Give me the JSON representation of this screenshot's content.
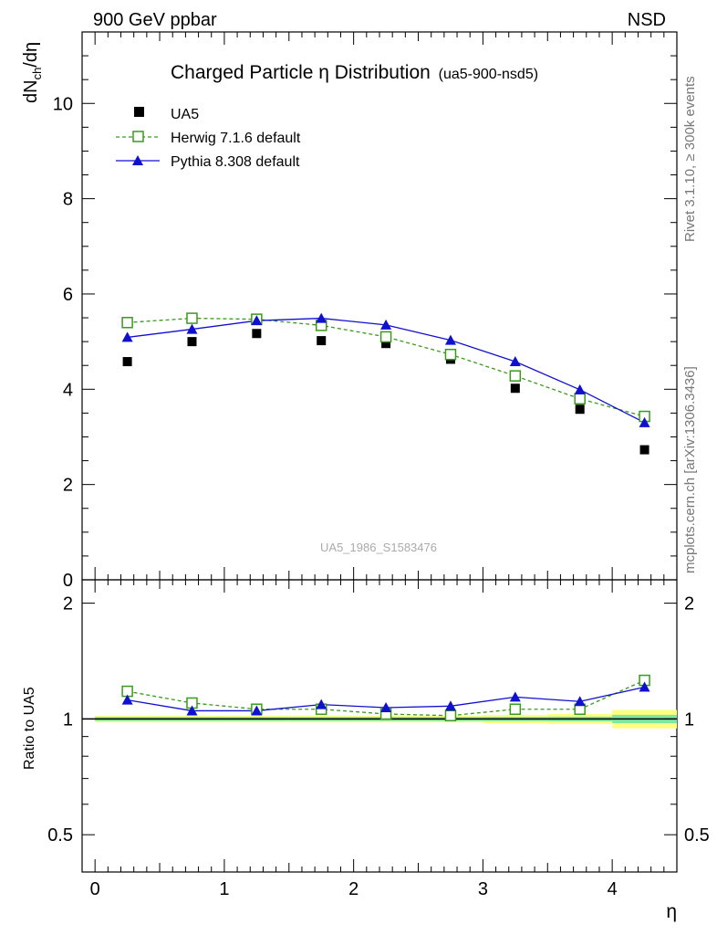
{
  "header": {
    "left_label": "900 GeV ppbar",
    "right_label": "NSD"
  },
  "side_labels": {
    "rivet": "Rivet 3.1.10, ≥ 300k events",
    "mcplots": "mcplots.cern.ch [arXiv:1306.3436]"
  },
  "watermark": "UA5_1986_S1583476",
  "chart_data": [
    {
      "type": "scatter",
      "title": "Charged Particle η Distribution",
      "subtitle": "(ua5-900-nsd5)",
      "xlabel": "η",
      "ylabel": "dN",
      "ylabel_sub": "ch",
      "ylabel_tail": "/dη",
      "xlim": [
        -0.1,
        4.5
      ],
      "ylim": [
        0,
        11.5
      ],
      "yticks": [
        0,
        2,
        4,
        6,
        8,
        10
      ],
      "grid": false,
      "legend_position": "top-left",
      "x": [
        0.25,
        0.75,
        1.25,
        1.75,
        2.25,
        2.75,
        3.25,
        3.75,
        4.25
      ],
      "series": [
        {
          "name": "UA5",
          "style": "data",
          "color": "#000000",
          "values": [
            4.58,
            5.0,
            5.17,
            5.02,
            4.96,
            4.63,
            4.02,
            3.58,
            2.73
          ]
        },
        {
          "name": "Herwig 7.1.6 default",
          "style": "dashed-open-square",
          "color": "#3a9a1a",
          "values": [
            5.4,
            5.49,
            5.47,
            5.34,
            5.1,
            4.73,
            4.28,
            3.8,
            3.43
          ]
        },
        {
          "name": "Pythia 8.308 default",
          "style": "solid-triangle",
          "color": "#1010d0",
          "values": [
            5.09,
            5.26,
            5.44,
            5.49,
            5.35,
            5.03,
            4.58,
            3.99,
            3.3
          ]
        }
      ]
    },
    {
      "type": "line",
      "ylabel": "Ratio to UA5",
      "xlim": [
        -0.1,
        4.5
      ],
      "ylim": [
        0.4,
        2.3
      ],
      "yticks": [
        0.5,
        1,
        2
      ],
      "ytick_labels": [
        "0.5",
        "1",
        "2"
      ],
      "xticks": [
        0,
        1,
        2,
        3,
        4
      ],
      "x": [
        0.25,
        0.75,
        1.25,
        1.75,
        2.25,
        2.75,
        3.25,
        3.75,
        4.25
      ],
      "bins": [
        [
          0,
          0.5
        ],
        [
          0.5,
          1
        ],
        [
          1,
          1.5
        ],
        [
          1.5,
          2
        ],
        [
          2,
          2.5
        ],
        [
          2.5,
          3
        ],
        [
          3,
          3.5
        ],
        [
          3.5,
          4
        ],
        [
          4,
          4.5
        ]
      ],
      "band_stat": [
        0.012,
        0.012,
        0.012,
        0.012,
        0.012,
        0.012,
        0.013,
        0.014,
        0.025
      ],
      "band_total": [
        0.02,
        0.02,
        0.02,
        0.02,
        0.02,
        0.02,
        0.025,
        0.03,
        0.055
      ],
      "band_colors": {
        "stat": "#7fe8a0",
        "total": "#ffff80"
      },
      "series": [
        {
          "name": "Herwig 7.1.6 default",
          "color": "#3a9a1a",
          "values": [
            1.18,
            1.1,
            1.06,
            1.06,
            1.03,
            1.02,
            1.06,
            1.06,
            1.26
          ]
        },
        {
          "name": "Pythia 8.308 default",
          "color": "#1010d0",
          "values": [
            1.12,
            1.05,
            1.05,
            1.09,
            1.07,
            1.08,
            1.14,
            1.11,
            1.21
          ]
        }
      ]
    }
  ]
}
